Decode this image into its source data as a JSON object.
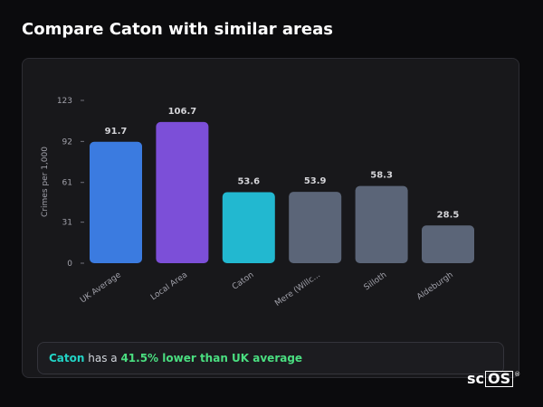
{
  "page": {
    "title": "Compare Caton with similar areas"
  },
  "summary": {
    "place": "Caton",
    "middle": " has a ",
    "delta": "41.5% lower than UK average"
  },
  "logo": {
    "prefix": "sc",
    "boxed": "OS",
    "reg": "®"
  },
  "chart_data": {
    "type": "bar",
    "categories": [
      "UK Average",
      "Local Area",
      "Caton",
      "Mere (Willc...",
      "Silloth",
      "Aldeburgh"
    ],
    "values": [
      91.7,
      106.7,
      53.6,
      53.9,
      58.3,
      28.5
    ],
    "value_labels": [
      "91.7",
      "106.7",
      "53.6",
      "53.9",
      "58.3",
      "28.5"
    ],
    "colors": [
      "#3b7be0",
      "#7c4fd8",
      "#22b8d0",
      "#5b6578",
      "#5b6578",
      "#5b6578"
    ],
    "yticks": [
      0,
      31,
      61,
      92,
      123
    ],
    "ylim": [
      0,
      123
    ],
    "ylabel": "Crimes per 1,000",
    "xlabel": "",
    "grid": false,
    "legend": "none"
  }
}
